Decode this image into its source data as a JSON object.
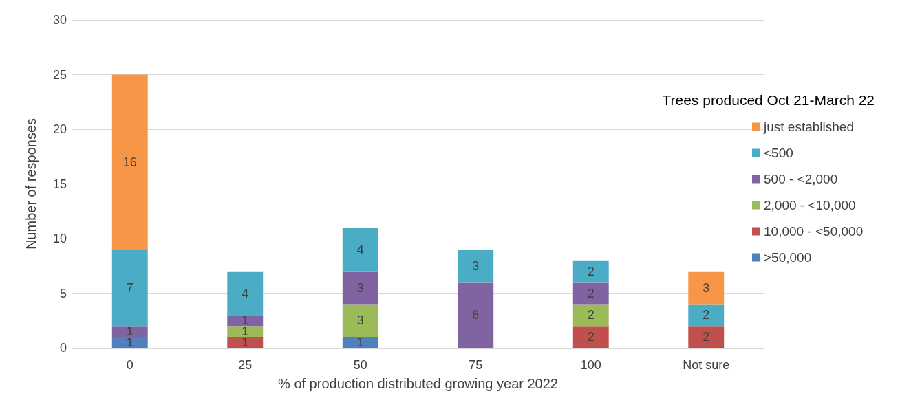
{
  "chart_data": {
    "type": "bar",
    "stacked": true,
    "xlabel": "% of production distributed growing year 2022",
    "ylabel": "Number of responses",
    "legend_title": "Trees produced Oct 21-March 22",
    "categories": [
      "0",
      "25",
      "50",
      "75",
      "100",
      "Not sure"
    ],
    "series": [
      {
        "name": ">50,000",
        "color": "#4f81bd",
        "values": [
          1,
          null,
          1,
          null,
          null,
          null
        ]
      },
      {
        "name": "10,000 - <50,000",
        "color": "#c0504d",
        "values": [
          null,
          1,
          null,
          null,
          2,
          2
        ]
      },
      {
        "name": "2,000 - <10,000",
        "color": "#9bbb59",
        "values": [
          null,
          1,
          3,
          null,
          2,
          null
        ]
      },
      {
        "name": "500 - <2,000",
        "color": "#8064a2",
        "values": [
          1,
          1,
          3,
          6,
          2,
          null
        ]
      },
      {
        "name": "<500",
        "color": "#4bacc6",
        "values": [
          7,
          4,
          4,
          3,
          2,
          2
        ]
      },
      {
        "name": "just established",
        "color": "#f79646",
        "values": [
          16,
          null,
          null,
          null,
          null,
          3
        ]
      }
    ],
    "ylim": [
      0,
      30
    ],
    "yticks": [
      0,
      5,
      10,
      15,
      20,
      25,
      30
    ],
    "grid": "y",
    "legend": "right",
    "data_labels": true
  }
}
